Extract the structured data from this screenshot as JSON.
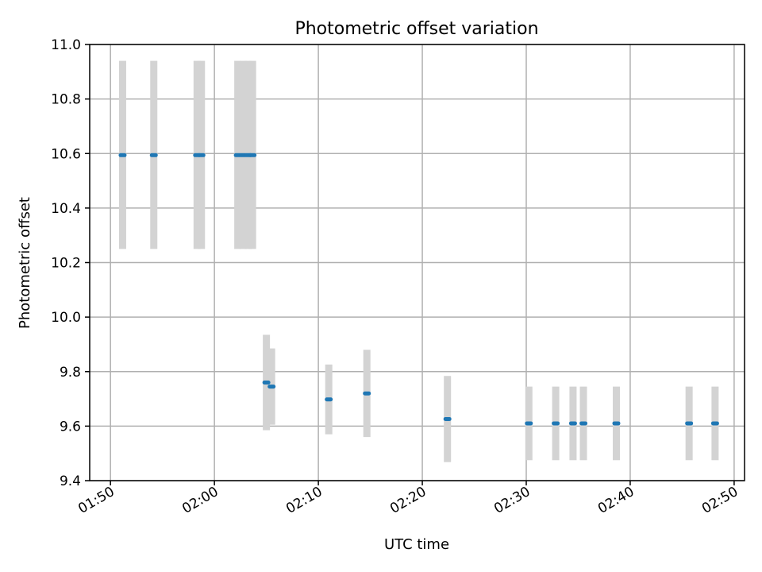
{
  "chart_data": {
    "type": "scatter",
    "title": "Photometric offset variation",
    "xlabel": "UTC time",
    "ylabel": "Photometric offset",
    "xlim": [
      "01:48:00",
      "02:51:00"
    ],
    "ylim": [
      9.4,
      11.0
    ],
    "xticks": [
      "01:50",
      "02:00",
      "02:10",
      "02:20",
      "02:30",
      "02:40",
      "02:50"
    ],
    "yticks": [
      "9.4",
      "9.6",
      "9.8",
      "10.0",
      "10.2",
      "10.4",
      "10.6",
      "10.8",
      "11.0"
    ],
    "grid": true,
    "colors": {
      "point": "#1f77b4",
      "errorbar": "#d3d3d3"
    },
    "points": [
      {
        "x": "01:51:10",
        "y": 10.594,
        "ymin": 10.25,
        "ymax": 10.94
      },
      {
        "x": "01:54:10",
        "y": 10.594,
        "ymin": 10.25,
        "ymax": 10.94
      },
      {
        "x": "01:58:20",
        "y": 10.594,
        "ymin": 10.25,
        "ymax": 10.94
      },
      {
        "x": "01:58:45",
        "y": 10.594,
        "ymin": 10.25,
        "ymax": 10.94
      },
      {
        "x": "02:02:15",
        "y": 10.594,
        "ymin": 10.25,
        "ymax": 10.94
      },
      {
        "x": "02:02:45",
        "y": 10.594,
        "ymin": 10.25,
        "ymax": 10.94
      },
      {
        "x": "02:03:15",
        "y": 10.594,
        "ymin": 10.25,
        "ymax": 10.94
      },
      {
        "x": "02:03:40",
        "y": 10.594,
        "ymin": 10.25,
        "ymax": 10.94
      },
      {
        "x": "02:05:00",
        "y": 9.76,
        "ymin": 9.585,
        "ymax": 9.935
      },
      {
        "x": "02:05:30",
        "y": 9.745,
        "ymin": 9.605,
        "ymax": 9.885
      },
      {
        "x": "02:11:00",
        "y": 9.698,
        "ymin": 9.57,
        "ymax": 9.826
      },
      {
        "x": "02:14:40",
        "y": 9.72,
        "ymin": 9.56,
        "ymax": 9.88
      },
      {
        "x": "02:22:25",
        "y": 9.626,
        "ymin": 9.468,
        "ymax": 9.784
      },
      {
        "x": "02:30:15",
        "y": 9.61,
        "ymin": 9.475,
        "ymax": 9.745
      },
      {
        "x": "02:32:50",
        "y": 9.61,
        "ymin": 9.475,
        "ymax": 9.745
      },
      {
        "x": "02:34:30",
        "y": 9.61,
        "ymin": 9.475,
        "ymax": 9.745
      },
      {
        "x": "02:35:30",
        "y": 9.61,
        "ymin": 9.475,
        "ymax": 9.745
      },
      {
        "x": "02:38:40",
        "y": 9.61,
        "ymin": 9.475,
        "ymax": 9.745
      },
      {
        "x": "02:45:40",
        "y": 9.61,
        "ymin": 9.475,
        "ymax": 9.745
      },
      {
        "x": "02:48:10",
        "y": 9.61,
        "ymin": 9.475,
        "ymax": 9.745
      }
    ]
  }
}
